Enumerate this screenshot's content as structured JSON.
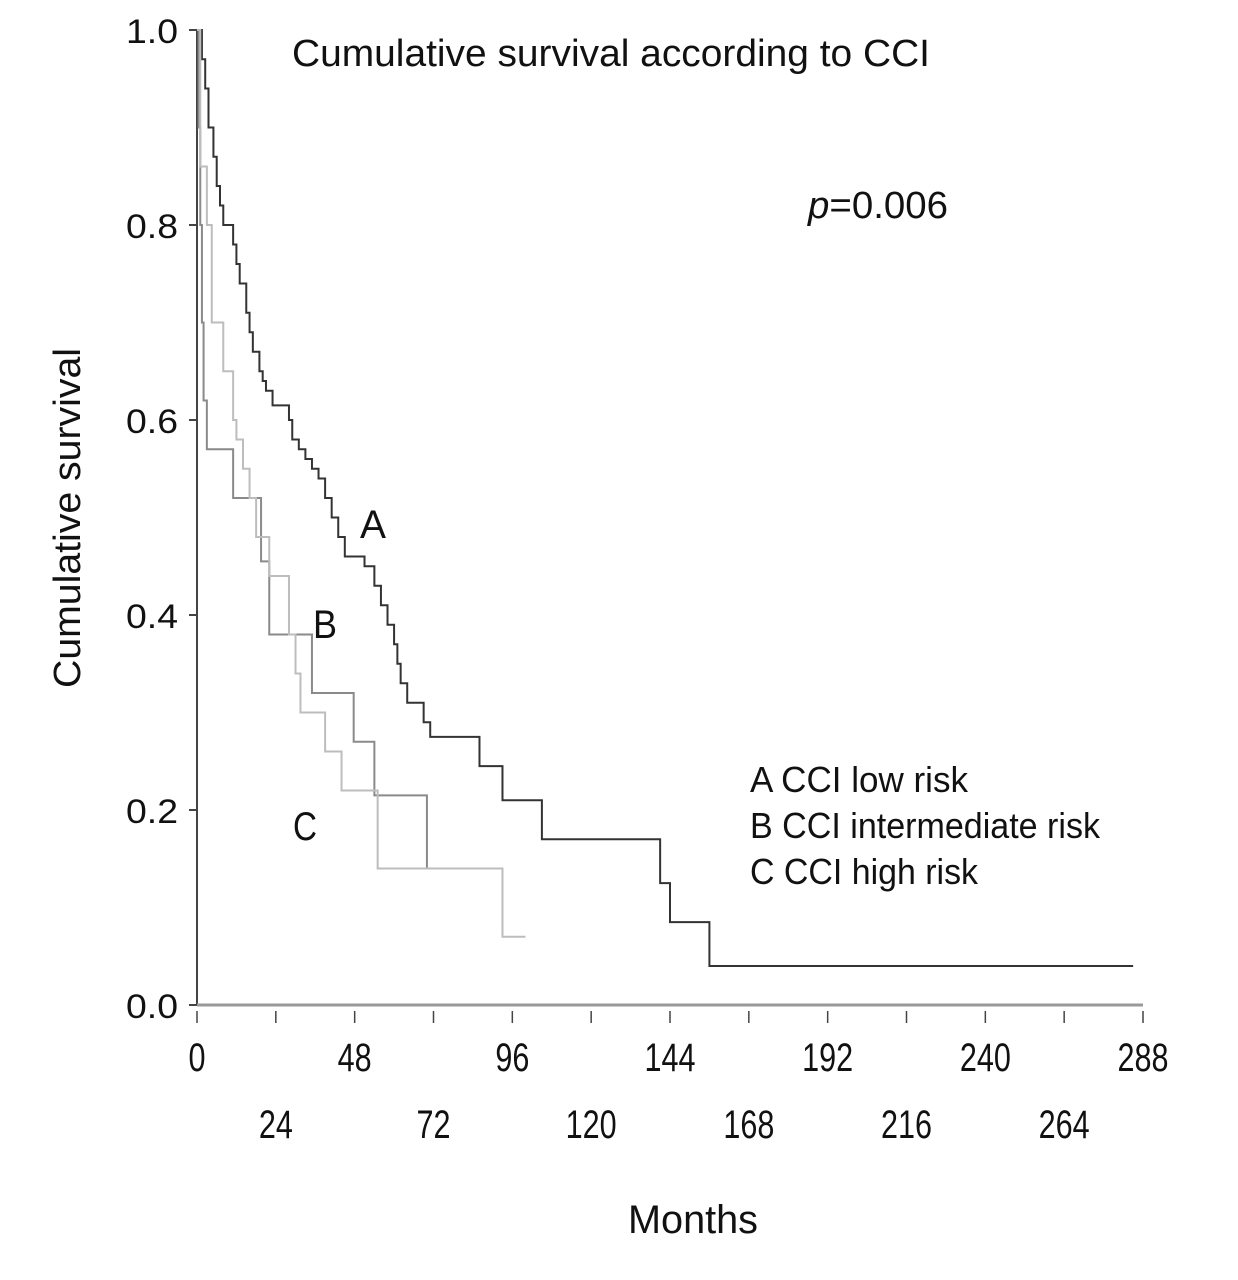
{
  "chart_data": {
    "type": "line",
    "subtype": "kaplan-meier step",
    "title": "Cumulative survival according to CCI",
    "annotation": "p=0.006",
    "annotation_italic": "p",
    "annotation_rest": "=0.006",
    "xlabel": "Months",
    "ylabel": "Cumulative survival",
    "xlim": [
      0,
      288
    ],
    "ylim": [
      0,
      1
    ],
    "xticks": [
      0,
      24,
      48,
      72,
      96,
      120,
      144,
      168,
      192,
      216,
      240,
      264,
      288
    ],
    "xtick_labels": [
      "0",
      "24",
      "48",
      "72",
      "96",
      "120",
      "144",
      "168",
      "192",
      "216",
      "240",
      "264",
      "288"
    ],
    "yticks": [
      0,
      0.2,
      0.4,
      0.6,
      0.8,
      1.0
    ],
    "ytick_labels": [
      "0.0",
      "0.2",
      "0.4",
      "0.6",
      "0.8",
      "1.0"
    ],
    "grid": false,
    "legend_position": "right-middle",
    "legend": [
      "A CCI low risk",
      "B CCI intermediate risk",
      "C CCI high risk"
    ],
    "series": [
      {
        "name": "A",
        "label": "A",
        "color": "#333333",
        "end": 285,
        "steps": [
          [
            0,
            1
          ],
          [
            1.5,
            0.97
          ],
          [
            2.5,
            0.94
          ],
          [
            3.5,
            0.9
          ],
          [
            5,
            0.87
          ],
          [
            6,
            0.84
          ],
          [
            7,
            0.82
          ],
          [
            8,
            0.8
          ],
          [
            11,
            0.78
          ],
          [
            12,
            0.76
          ],
          [
            13,
            0.74
          ],
          [
            15,
            0.71
          ],
          [
            16,
            0.69
          ],
          [
            17,
            0.67
          ],
          [
            19,
            0.65
          ],
          [
            20,
            0.64
          ],
          [
            21,
            0.63
          ],
          [
            23,
            0.615
          ],
          [
            28,
            0.6
          ],
          [
            29,
            0.58
          ],
          [
            31,
            0.57
          ],
          [
            33,
            0.56
          ],
          [
            35,
            0.55
          ],
          [
            37,
            0.54
          ],
          [
            39,
            0.52
          ],
          [
            41,
            0.5
          ],
          [
            43,
            0.48
          ],
          [
            45,
            0.46
          ],
          [
            51,
            0.45
          ],
          [
            54,
            0.43
          ],
          [
            56,
            0.41
          ],
          [
            58,
            0.39
          ],
          [
            60,
            0.37
          ],
          [
            61,
            0.35
          ],
          [
            62,
            0.33
          ],
          [
            64,
            0.31
          ],
          [
            69,
            0.29
          ],
          [
            71,
            0.275
          ],
          [
            86,
            0.245
          ],
          [
            93,
            0.21
          ],
          [
            105,
            0.17
          ],
          [
            141,
            0.125
          ],
          [
            144,
            0.085
          ],
          [
            156,
            0.04
          ]
        ]
      },
      {
        "name": "B",
        "label": "B",
        "color": "#8a8a8a",
        "end": 72,
        "steps": [
          [
            0,
            1
          ],
          [
            0.5,
            0.9
          ],
          [
            1,
            0.8
          ],
          [
            1.5,
            0.7
          ],
          [
            2,
            0.62
          ],
          [
            3,
            0.57
          ],
          [
            11,
            0.52
          ],
          [
            19.5,
            0.455
          ],
          [
            22,
            0.38
          ],
          [
            35,
            0.32
          ],
          [
            47.7,
            0.27
          ],
          [
            54,
            0.215
          ],
          [
            70,
            0.14
          ]
        ]
      },
      {
        "name": "C",
        "label": "C",
        "color": "#bdbdbd",
        "end": 100,
        "steps": [
          [
            0,
            1
          ],
          [
            1,
            0.86
          ],
          [
            3,
            0.8
          ],
          [
            4.5,
            0.7
          ],
          [
            8,
            0.65
          ],
          [
            11,
            0.6
          ],
          [
            12,
            0.58
          ],
          [
            14,
            0.55
          ],
          [
            16,
            0.52
          ],
          [
            18,
            0.48
          ],
          [
            22,
            0.44
          ],
          [
            28,
            0.38
          ],
          [
            30,
            0.34
          ],
          [
            31.5,
            0.3
          ],
          [
            39,
            0.26
          ],
          [
            44,
            0.22
          ],
          [
            55,
            0.14
          ],
          [
            93,
            0.07
          ]
        ]
      }
    ]
  }
}
